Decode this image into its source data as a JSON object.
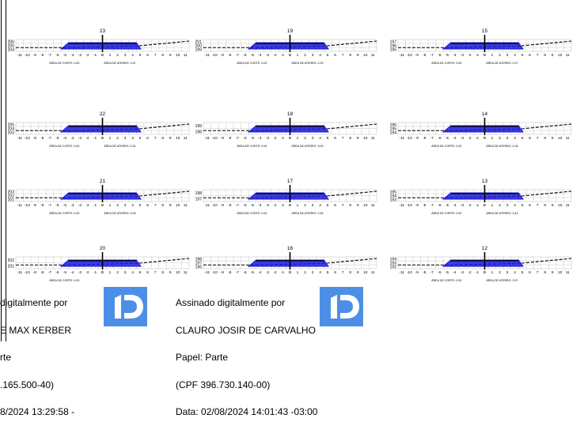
{
  "section_labels": {
    "area_corte": "ÁREA DE CORTE:",
    "area_aterro": "ÁREA DE ATERRO:"
  },
  "x_ticks": [
    "-11",
    "-10",
    "-9",
    "-8",
    "-7",
    "-6",
    "-5",
    "-4",
    "-3",
    "-2",
    "-1",
    "0",
    "1",
    "2",
    "3",
    "4",
    "5",
    "6",
    "7",
    "8",
    "9",
    "10",
    "11"
  ],
  "sections": [
    {
      "station": "23",
      "y_ticks": [
        "206",
        "205",
        "204"
      ],
      "corte": "0.00",
      "aterro": "1.87"
    },
    {
      "station": "19",
      "y_ticks": [
        "201",
        "200",
        "199"
      ],
      "corte": "0.00",
      "aterro": "3.29"
    },
    {
      "station": "15",
      "y_ticks": [
        "197",
        "196",
        "195"
      ],
      "corte": "0.00",
      "aterro": "3.37"
    },
    {
      "station": "22",
      "y_ticks": [
        "205",
        "204",
        "203"
      ],
      "corte": "0.00",
      "aterro": "2.44"
    },
    {
      "station": "18",
      "y_ticks": [
        "199",
        "198"
      ],
      "corte": "0.00",
      "aterro": "3.00"
    },
    {
      "station": "14",
      "y_ticks": [
        "196",
        "195",
        "194"
      ],
      "corte": "0.00",
      "aterro": "4.28"
    },
    {
      "station": "21",
      "y_ticks": [
        "203",
        "202",
        "201"
      ],
      "corte": "0.00",
      "aterro": "5.05"
    },
    {
      "station": "17",
      "y_ticks": [
        "198",
        "197"
      ],
      "corte": "0.00",
      "aterro": "2.53"
    },
    {
      "station": "13",
      "y_ticks": [
        "195",
        "194",
        "193"
      ],
      "corte": "0.00",
      "aterro": "3.43"
    },
    {
      "station": "20",
      "y_ticks": [
        "202",
        "201"
      ],
      "corte": "0.00",
      "aterro": ""
    },
    {
      "station": "16",
      "y_ticks": [
        "198",
        "197",
        "196"
      ],
      "corte": "",
      "aterro": ""
    },
    {
      "station": "12",
      "y_ticks": [
        "194",
        "193",
        "192"
      ],
      "corte": "0.00",
      "aterro": "3.97"
    }
  ],
  "signatures": [
    {
      "line1": "digitalmente por",
      "line2": "E MAX KERBER",
      "line3": "rte",
      "line4": ".165.500-40)",
      "line5": "8/2024 13:29:58 -"
    },
    {
      "line1": "Assinado digitalmente por",
      "line2": "CLAURO JOSIR DE CARVALHO",
      "line3": "Papel: Parte",
      "line4": "(CPF 396.730.140-00)",
      "line5": "Data: 02/08/2024 14:01:43 -03:00"
    }
  ],
  "colors": {
    "road": "#1a1adb",
    "terrain": "#000000",
    "grid": "#c8c8c8",
    "logo": "#4d8fe6"
  }
}
